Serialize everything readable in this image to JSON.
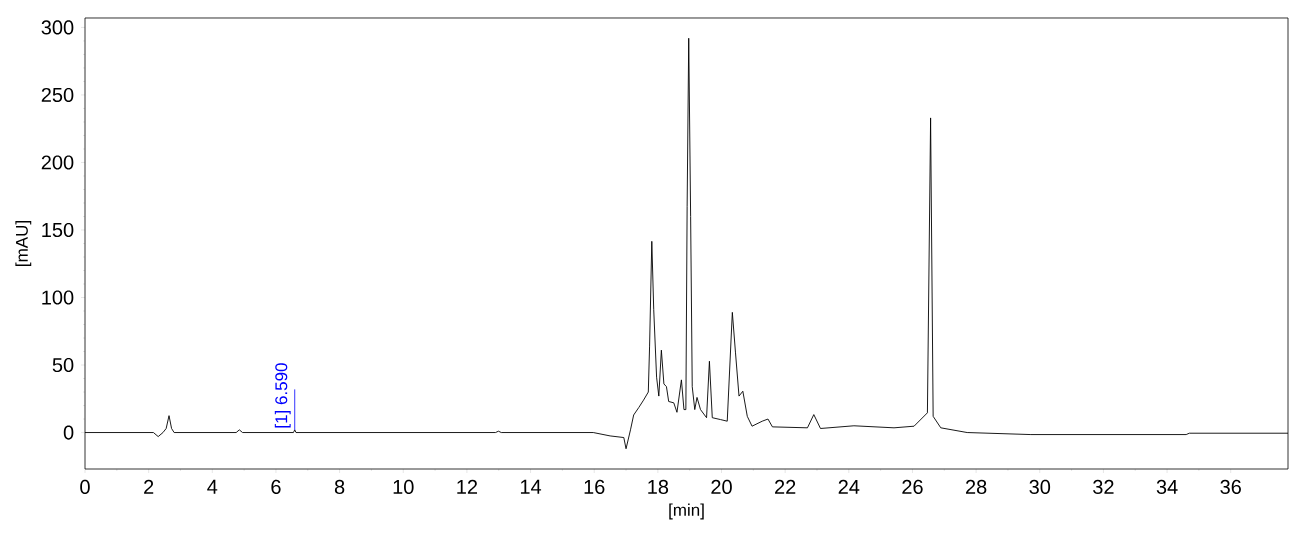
{
  "chart_data": {
    "type": "line",
    "xlabel": "[min]",
    "ylabel": "[mAU]",
    "color": "#000000",
    "x": [
      0,
      2.15,
      2.3,
      2.45,
      2.55,
      2.64,
      2.72,
      2.8,
      4.75,
      4.85,
      4.95,
      6.55,
      6.59,
      6.63,
      12.9,
      12.99,
      13.08,
      15.97,
      16.5,
      16.93,
      17.0,
      17.14,
      17.24,
      17.4,
      17.55,
      17.7,
      17.74,
      17.81,
      17.87,
      17.96,
      18.03,
      18.11,
      18.19,
      18.27,
      18.34,
      18.5,
      18.6,
      18.74,
      18.82,
      18.88,
      18.92,
      18.97,
      19.03,
      19.08,
      19.16,
      19.23,
      19.34,
      19.53,
      19.62,
      19.71,
      19.97,
      20.18,
      20.34,
      20.44,
      20.55,
      20.67,
      20.81,
      20.96,
      21.28,
      21.46,
      21.6,
      22.7,
      22.9,
      23.11,
      24.16,
      25.42,
      26.05,
      26.47,
      26.57,
      26.65,
      26.89,
      27.72,
      29.72,
      34.6,
      34.7,
      37.8
    ],
    "values": [
      0,
      0,
      -3,
      0,
      3,
      12.5,
      3,
      0,
      0,
      2,
      0,
      0,
      2,
      0,
      0,
      1,
      0,
      0,
      -2.5,
      -3.7,
      -12,
      2,
      13,
      18.5,
      24,
      30,
      64,
      141.6,
      91,
      41,
      27,
      61,
      36,
      34,
      23,
      22,
      15,
      39,
      17,
      17,
      167.5,
      292,
      160,
      34,
      17,
      26,
      17,
      11,
      52.8,
      11,
      9.6,
      8.4,
      89,
      59,
      27,
      30.6,
      12,
      4.7,
      8.4,
      10,
      4.2,
      3.5,
      13.3,
      3,
      5,
      3.5,
      4.7,
      14.6,
      233,
      12,
      3.5,
      0,
      -1.5,
      -1.5,
      -0.5,
      -0.5
    ],
    "xlim": [
      0,
      37.8
    ],
    "ylim": [
      -27,
      307
    ],
    "xticks": [
      0,
      2,
      4,
      6,
      8,
      10,
      12,
      14,
      16,
      18,
      20,
      22,
      24,
      26,
      28,
      30,
      32,
      34,
      36
    ],
    "yticks": [
      0,
      50,
      100,
      150,
      200,
      250,
      300
    ],
    "annotations": [
      {
        "text": "[1]  6.590",
        "x": 6.59,
        "y": 2
      }
    ]
  }
}
